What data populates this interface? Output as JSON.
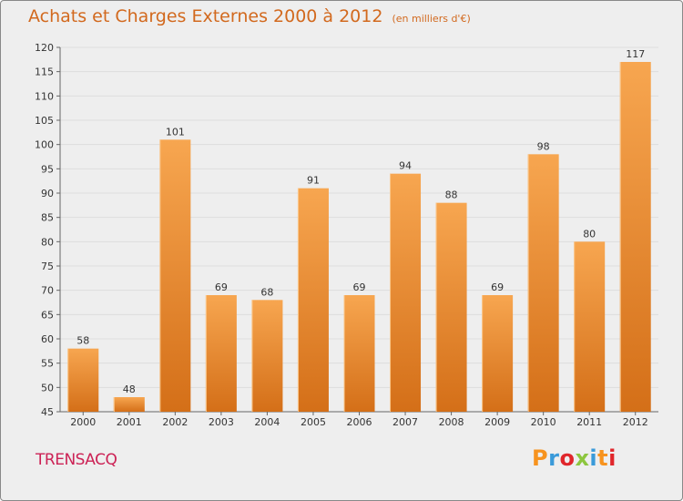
{
  "header": {
    "title": "Achats et Charges Externes 2000 à 2012",
    "unit": "(en milliers d'€)"
  },
  "footer": {
    "commune": "TRENSACQ",
    "brand": "Proxiti",
    "brand_colors": [
      "#f7931e",
      "#3a9ad9",
      "#e0262b",
      "#8dc63f",
      "#3a9ad9",
      "#f7931e",
      "#e0262b"
    ]
  },
  "colors": {
    "title": "#d2691e",
    "commune": "#cc2255",
    "bar_light": "#f7a650",
    "bar_dark": "#d46f18",
    "background": "#eeeeee",
    "grid": "#dddddd"
  },
  "chart_data": {
    "type": "bar",
    "title": "Achats et Charges Externes 2000 à 2012",
    "subtitle": "(en milliers d'€)",
    "xlabel": "",
    "ylabel": "",
    "categories": [
      "2000",
      "2001",
      "2002",
      "2003",
      "2004",
      "2005",
      "2006",
      "2007",
      "2008",
      "2009",
      "2010",
      "2011",
      "2012"
    ],
    "values": [
      58,
      48,
      101,
      69,
      68,
      91,
      69,
      94,
      88,
      69,
      98,
      80,
      117
    ],
    "ylim": [
      45,
      120
    ],
    "yticks": [
      45,
      50,
      55,
      60,
      65,
      70,
      75,
      80,
      85,
      90,
      95,
      100,
      105,
      110,
      115,
      120
    ],
    "grid": true,
    "legend": "none"
  }
}
